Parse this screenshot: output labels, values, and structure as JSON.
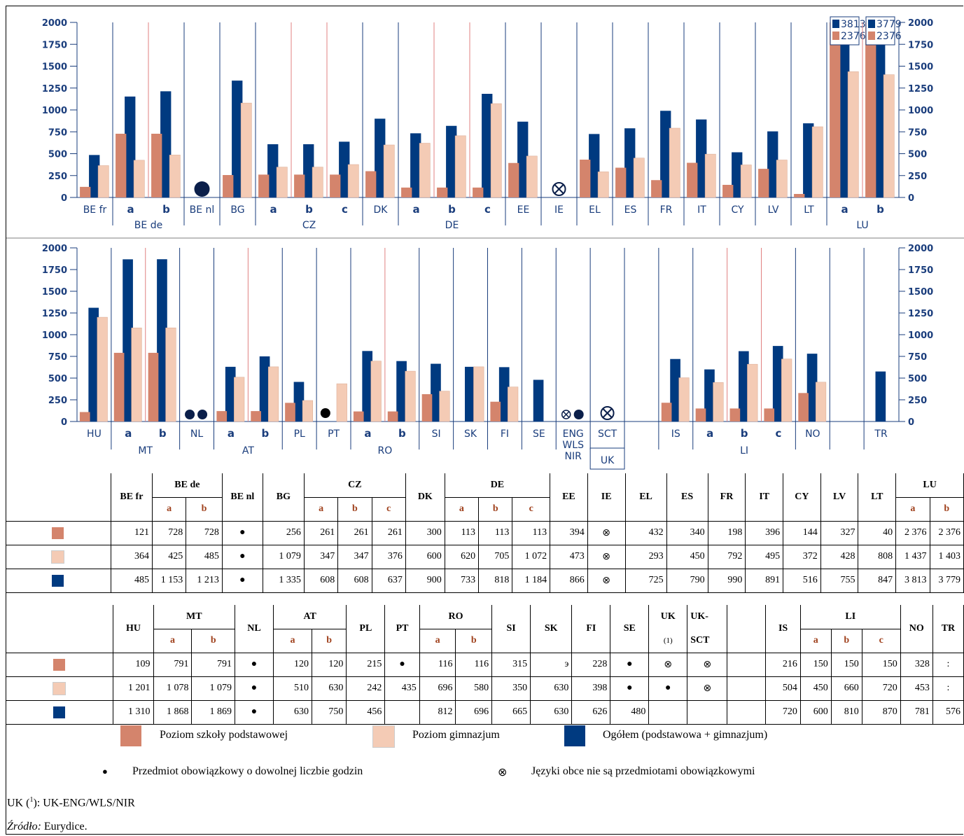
{
  "colors": {
    "primary": "#d4846c",
    "lower_secondary": "#f4cbb5",
    "total": "#003a80",
    "grid": "#1a3d7c",
    "sub_red": "#e08080"
  },
  "chart_data": [
    {
      "type": "bar",
      "ylim": [
        0,
        2000
      ],
      "yticks": [
        0,
        250,
        500,
        750,
        1000,
        1250,
        1500,
        1750,
        2000
      ],
      "groups": [
        {
          "label": "BE fr",
          "items": [
            {
              "sub": "",
              "p": 121,
              "g": 364,
              "t": 485
            }
          ]
        },
        {
          "label": "BE de",
          "items": [
            {
              "sub": "a",
              "p": 728,
              "g": 425,
              "t": 1153
            },
            {
              "sub": "b",
              "p": 728,
              "g": 485,
              "t": 1213
            }
          ]
        },
        {
          "label": "BE nl",
          "items": [
            {
              "sub": "",
              "sym": "dot"
            }
          ]
        },
        {
          "label": "BG",
          "items": [
            {
              "sub": "",
              "p": 256,
              "g": 1079,
              "t": 1335
            }
          ]
        },
        {
          "label": "CZ",
          "items": [
            {
              "sub": "a",
              "p": 261,
              "g": 347,
              "t": 608
            },
            {
              "sub": "b",
              "p": 261,
              "g": 347,
              "t": 608
            },
            {
              "sub": "c",
              "p": 261,
              "g": 376,
              "t": 637
            }
          ]
        },
        {
          "label": "DK",
          "items": [
            {
              "sub": "",
              "p": 300,
              "g": 600,
              "t": 900
            }
          ]
        },
        {
          "label": "DE",
          "items": [
            {
              "sub": "a",
              "p": 113,
              "g": 620,
              "t": 733
            },
            {
              "sub": "b",
              "p": 113,
              "g": 705,
              "t": 818
            },
            {
              "sub": "c",
              "p": 113,
              "g": 1072,
              "t": 1184
            }
          ]
        },
        {
          "label": "EE",
          "items": [
            {
              "sub": "",
              "p": 394,
              "g": 473,
              "t": 866
            }
          ]
        },
        {
          "label": "IE",
          "items": [
            {
              "sub": "",
              "sym": "otimes"
            }
          ]
        },
        {
          "label": "EL",
          "items": [
            {
              "sub": "",
              "p": 432,
              "g": 293,
              "t": 725
            }
          ]
        },
        {
          "label": "ES",
          "items": [
            {
              "sub": "",
              "p": 340,
              "g": 450,
              "t": 790
            }
          ]
        },
        {
          "label": "FR",
          "items": [
            {
              "sub": "",
              "p": 198,
              "g": 792,
              "t": 990
            }
          ]
        },
        {
          "label": "IT",
          "items": [
            {
              "sub": "",
              "p": 396,
              "g": 495,
              "t": 891
            }
          ]
        },
        {
          "label": "CY",
          "items": [
            {
              "sub": "",
              "p": 144,
              "g": 372,
              "t": 516
            }
          ]
        },
        {
          "label": "LV",
          "items": [
            {
              "sub": "",
              "p": 327,
              "g": 428,
              "t": 755
            }
          ]
        },
        {
          "label": "LT",
          "items": [
            {
              "sub": "",
              "p": 40,
              "g": 808,
              "t": 847
            }
          ]
        },
        {
          "label": "LU",
          "items": [
            {
              "sub": "a",
              "p": 2376,
              "g": 1437,
              "t": 3813,
              "callout": [
                "3813",
                "2376"
              ]
            },
            {
              "sub": "b",
              "p": 2376,
              "g": 1403,
              "t": 3779,
              "callout": [
                "3779",
                "2376"
              ]
            }
          ]
        }
      ]
    },
    {
      "type": "bar",
      "ylim": [
        0,
        2000
      ],
      "yticks": [
        0,
        250,
        500,
        750,
        1000,
        1250,
        1500,
        1750,
        2000
      ],
      "groups": [
        {
          "label": "HU",
          "items": [
            {
              "sub": "",
              "p": 109,
              "g": 1201,
              "t": 1310
            }
          ]
        },
        {
          "label": "MT",
          "items": [
            {
              "sub": "a",
              "p": 791,
              "g": 1078,
              "t": 1868
            },
            {
              "sub": "b",
              "p": 791,
              "g": 1079,
              "t": 1869
            }
          ]
        },
        {
          "label": "NL",
          "items": [
            {
              "sub": "",
              "sym": "dotdot"
            }
          ]
        },
        {
          "label": "AT",
          "items": [
            {
              "sub": "a",
              "p": 120,
              "g": 510,
              "t": 630
            },
            {
              "sub": "b",
              "p": 120,
              "g": 630,
              "t": 750
            }
          ]
        },
        {
          "label": "PL",
          "items": [
            {
              "sub": "",
              "p": 215,
              "g": 242,
              "t": 456
            }
          ]
        },
        {
          "label": "PT",
          "items": [
            {
              "sub": "",
              "pdot": true,
              "g": 435
            }
          ]
        },
        {
          "label": "RO",
          "items": [
            {
              "sub": "a",
              "p": 116,
              "g": 696,
              "t": 812
            },
            {
              "sub": "b",
              "p": 116,
              "g": 580,
              "t": 696
            }
          ]
        },
        {
          "label": "SI",
          "items": [
            {
              "sub": "",
              "p": 315,
              "g": 350,
              "t": 665
            }
          ]
        },
        {
          "label": "SK",
          "items": [
            {
              "sub": "",
              "g": 630,
              "t": 630
            }
          ]
        },
        {
          "label": "FI",
          "items": [
            {
              "sub": "",
              "p": 228,
              "g": 398,
              "t": 626
            }
          ]
        },
        {
          "label": "SE",
          "items": [
            {
              "sub": "",
              "t": 480
            }
          ]
        },
        {
          "label": "ENG\nWLS\nNIR",
          "items": [
            {
              "sub": "",
              "sym": "otimesdot"
            }
          ]
        },
        {
          "label": "SCT",
          "items": [
            {
              "sub": "",
              "sym": "otimes"
            }
          ]
        },
        {
          "label": "",
          "items": [
            {
              "sub": "",
              "empty": true
            }
          ]
        },
        {
          "label": "IS",
          "items": [
            {
              "sub": "",
              "p": 216,
              "g": 504,
              "t": 720
            }
          ]
        },
        {
          "label": "LI",
          "items": [
            {
              "sub": "a",
              "p": 150,
              "g": 450,
              "t": 600
            },
            {
              "sub": "b",
              "p": 150,
              "g": 660,
              "t": 810
            },
            {
              "sub": "c",
              "p": 150,
              "g": 720,
              "t": 870
            }
          ]
        },
        {
          "label": "NO",
          "items": [
            {
              "sub": "",
              "p": 328,
              "g": 453,
              "t": 781
            }
          ]
        },
        {
          "label": "",
          "items": [
            {
              "sub": "",
              "empty": true
            }
          ]
        },
        {
          "label": "TR",
          "items": [
            {
              "sub": "",
              "t": 576
            }
          ]
        }
      ],
      "uk_label": "UK"
    }
  ],
  "table1": {
    "heads": [
      "BE fr",
      "BE de",
      "BE nl",
      "BG",
      "CZ",
      "DK",
      "DE",
      "EE",
      "IE",
      "EL",
      "ES",
      "FR",
      "IT",
      "CY",
      "LV",
      "LT",
      "LU"
    ],
    "subs": {
      "a": "a",
      "b": "b",
      "c": "c"
    },
    "row1": [
      "121",
      "728",
      "728",
      "●",
      "256",
      "261",
      "261",
      "261",
      "300",
      "113",
      "113",
      "113",
      "394",
      "⊗",
      "432",
      "340",
      "198",
      "396",
      "144",
      "327",
      "40",
      "2 376",
      "2 376"
    ],
    "row2": [
      "364",
      "425",
      "485",
      "●",
      "1 079",
      "347",
      "347",
      "376",
      "600",
      "620",
      "705",
      "1 072",
      "473",
      "⊗",
      "293",
      "450",
      "792",
      "495",
      "372",
      "428",
      "808",
      "1 437",
      "1 403"
    ],
    "row3": [
      "485",
      "1 153",
      "1 213",
      "●",
      "1 335",
      "608",
      "608",
      "637",
      "900",
      "733",
      "818",
      "1 184",
      "866",
      "⊗",
      "725",
      "790",
      "990",
      "891",
      "516",
      "755",
      "847",
      "3 813",
      "3 779"
    ]
  },
  "table2": {
    "heads": [
      "HU",
      "MT",
      "NL",
      "AT",
      "PL",
      "PT",
      "RO",
      "SI",
      "SK",
      "FI",
      "SE",
      "UK",
      "(1)",
      "UK-",
      "SCT",
      "IS",
      "LI",
      "NO",
      "TR"
    ],
    "row1": [
      "109",
      "791",
      "791",
      "●",
      "120",
      "120",
      "215",
      "●",
      "116",
      "116",
      "315",
      "э",
      "228",
      "●",
      "⊗",
      "⊗",
      "",
      "216",
      "150",
      "150",
      "150",
      "328",
      ":"
    ],
    "row2": [
      "1 201",
      "1 078",
      "1 079",
      "●",
      "510",
      "630",
      "242",
      "435",
      "696",
      "580",
      "350",
      "630",
      "398",
      "●",
      "●",
      "⊗",
      "",
      "504",
      "450",
      "660",
      "720",
      "453",
      ":"
    ],
    "row3": [
      "1 310",
      "1 868",
      "1 869",
      "●",
      "630",
      "750",
      "456",
      "",
      "812",
      "696",
      "665",
      "630",
      "626",
      "480",
      "",
      "",
      "",
      "720",
      "600",
      "810",
      "870",
      "781",
      "576"
    ]
  },
  "legend": {
    "primary": "Poziom szkoły podstawowej",
    "lower_secondary": "Poziom gimnazjum",
    "total": "Ogółem (podstawowa + gimnazjum)",
    "dot_symbol": "●",
    "dot_text": "Przedmiot obowiązkowy o dowolnej liczbie godzin",
    "otimes_symbol": "⊗",
    "otimes_text": "Języki obce nie są przedmiotami obowiązkowymi"
  },
  "notes": {
    "uk_prefix": "UK (",
    "uk_sup": "1",
    "uk_suffix": "): UK-ENG/WLS/NIR",
    "source_label": "Źródło:",
    "source_text": " Eurydice."
  }
}
